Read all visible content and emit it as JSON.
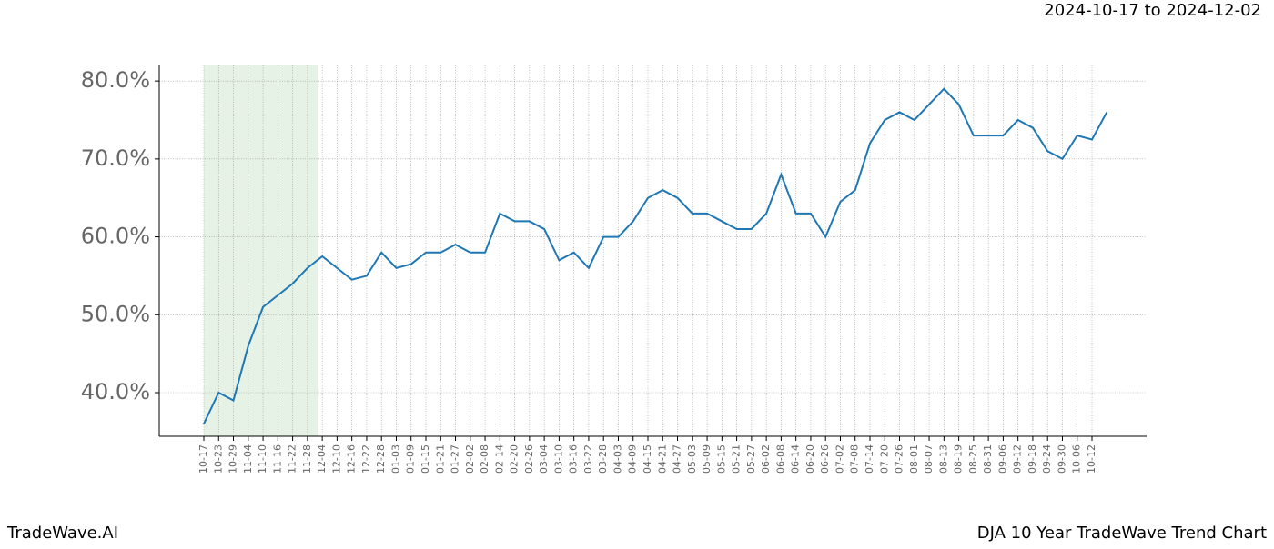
{
  "header": {
    "range": "2024-10-17 to 2024-12-02"
  },
  "footer": {
    "left": "TradeWave.AI",
    "right": "DJA 10 Year TradeWave Trend Chart"
  },
  "chart_data": {
    "type": "line",
    "categories": [
      "10-17",
      "10-23",
      "10-29",
      "11-04",
      "11-10",
      "11-16",
      "11-22",
      "11-28",
      "12-04",
      "12-10",
      "12-16",
      "12-22",
      "12-28",
      "01-03",
      "01-09",
      "01-15",
      "01-21",
      "01-27",
      "02-02",
      "02-08",
      "02-14",
      "02-20",
      "02-26",
      "03-04",
      "03-10",
      "03-16",
      "03-22",
      "03-28",
      "04-03",
      "04-09",
      "04-15",
      "04-21",
      "04-27",
      "05-03",
      "05-09",
      "05-15",
      "05-21",
      "05-27",
      "06-02",
      "06-08",
      "06-14",
      "06-20",
      "06-26",
      "07-02",
      "07-08",
      "07-14",
      "07-20",
      "07-26",
      "08-01",
      "08-07",
      "08-13",
      "08-19",
      "08-25",
      "08-31",
      "09-06",
      "09-12",
      "09-18",
      "09-24",
      "09-30",
      "10-06",
      "10-12",
      null
    ],
    "series": [
      {
        "color": "#1f77b4",
        "values": [
          36,
          40,
          39,
          46,
          51,
          52.5,
          54,
          56,
          57.5,
          56,
          54.5,
          55,
          58,
          56,
          56.5,
          58,
          58,
          59,
          58,
          58,
          63,
          62,
          62,
          61,
          57,
          58,
          56,
          60,
          60,
          62,
          65,
          66,
          65,
          63,
          63,
          62,
          61,
          61,
          63,
          68,
          63,
          63,
          60,
          64.5,
          66,
          72,
          75,
          76,
          75,
          77,
          79,
          77,
          73,
          73,
          73,
          75,
          74,
          71,
          70,
          73,
          72.5,
          76
        ]
      }
    ],
    "highlight": [
      "10-17",
      "12-04"
    ],
    "highlight_color": "#e5f2e5",
    "ylim": [
      34.4,
      82
    ],
    "yticks": [
      {
        "value": 40,
        "label": "40.0%"
      },
      {
        "value": 50,
        "label": "50.0%"
      },
      {
        "value": 60,
        "label": "60.0%"
      },
      {
        "value": 70,
        "label": "70.0%"
      },
      {
        "value": 80,
        "label": "80.0%"
      }
    ],
    "grid": true
  }
}
